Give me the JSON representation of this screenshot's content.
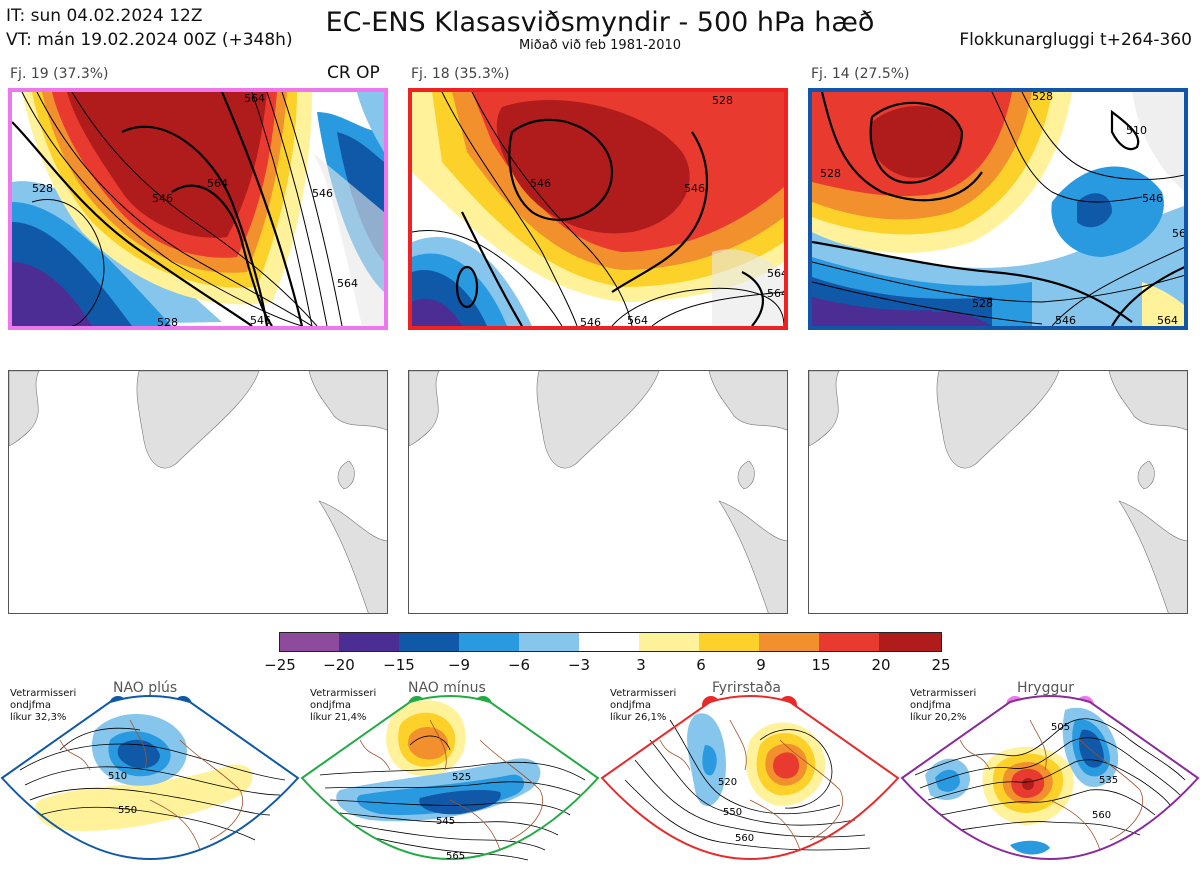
{
  "header": {
    "it_line": "IT: sun 04.02.2024 12Z",
    "vt_line": "VT: mán 19.02.2024 00Z  (+348h)",
    "title": "EC-ENS Klasasviðsmyndir - 500 hPa hæð",
    "subtitle": "Miðað við feb 1981-2010",
    "window": "Flokkunargluggi t+264-360"
  },
  "clusters": [
    {
      "label": "Fj. 19 (37.3%)",
      "border_color": "#ee77ee",
      "contours": [
        "528",
        "546",
        "564",
        "546",
        "564",
        "528",
        "546",
        "564"
      ],
      "tag": "CR OP"
    },
    {
      "label": "Fj. 18 (35.3%)",
      "border_color": "#ee2222",
      "contours": [
        "546",
        "546",
        "564",
        "528",
        "546",
        "564",
        "564"
      ]
    },
    {
      "label": "Fj. 14 (27.5%)",
      "border_color": "#1155aa",
      "contours": [
        "510",
        "528",
        "528",
        "546",
        "564",
        "528",
        "546",
        "564"
      ]
    }
  ],
  "colorbar": {
    "ticks": [
      "−25",
      "−20",
      "−15",
      "−9",
      "−6",
      "−3",
      "3",
      "6",
      "9",
      "15",
      "20",
      "25"
    ],
    "colors": [
      "#8e4a9c",
      "#4b2d94",
      "#1059a8",
      "#2a9ae0",
      "#86c6ec",
      "#ffffff",
      "#fff29a",
      "#fcd22a",
      "#f2902e",
      "#e83a2e",
      "#b01c1c"
    ]
  },
  "regimes": [
    {
      "name": "NAO plús",
      "prob_lines": [
        "Vetrarmisseri",
        "ondjfma",
        "líkur 32,3%"
      ],
      "dot_color": "#1059a8",
      "border_color": "#1059a8",
      "labels": [
        "510",
        "550"
      ]
    },
    {
      "name": "NAO mínus",
      "prob_lines": [
        "Vetrarmisseri",
        "ondjfma",
        "líkur 21,4%"
      ],
      "dot_color": "#22aa44",
      "border_color": "#22aa44",
      "labels": [
        "525",
        "545",
        "565"
      ]
    },
    {
      "name": "Fyrirstaða",
      "prob_lines": [
        "Vetrarmisseri",
        "ondjfma",
        "líkur 26,1%"
      ],
      "dot_color": "#e82a2a",
      "border_color": "#e82a2a",
      "labels": [
        "520",
        "550",
        "560"
      ]
    },
    {
      "name": "Hryggur",
      "prob_lines": [
        "Vetrarmisseri",
        "ondjfma",
        "líkur 20,2%"
      ],
      "dot_color": "#ee77ee",
      "border_color": "#8a2a9a",
      "labels": [
        "505",
        "535",
        "560"
      ]
    }
  ]
}
